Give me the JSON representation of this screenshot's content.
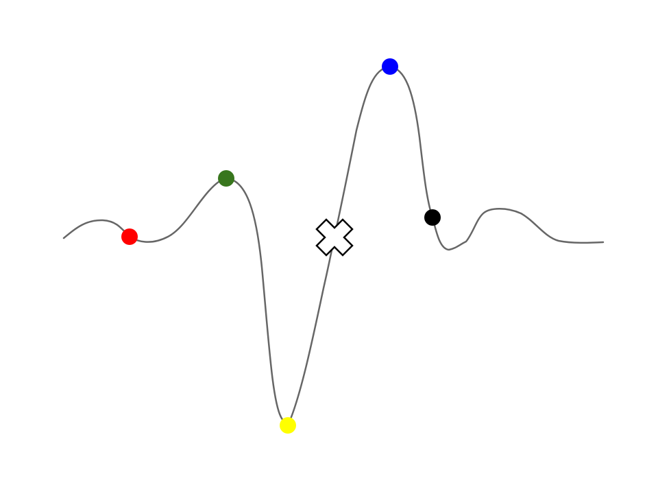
{
  "diagram": {
    "curve_color": "#666666",
    "markers": [
      {
        "id": "red",
        "color": "#ff0000",
        "shape": "circle"
      },
      {
        "id": "green",
        "color": "#38761d",
        "shape": "circle"
      },
      {
        "id": "yellow",
        "color": "#ffff00",
        "shape": "circle"
      },
      {
        "id": "blue",
        "color": "#0000ff",
        "shape": "circle"
      },
      {
        "id": "black",
        "color": "#000000",
        "shape": "circle"
      },
      {
        "id": "cross",
        "color": "#ffffff",
        "stroke": "#000000",
        "shape": "x-mark"
      }
    ]
  }
}
